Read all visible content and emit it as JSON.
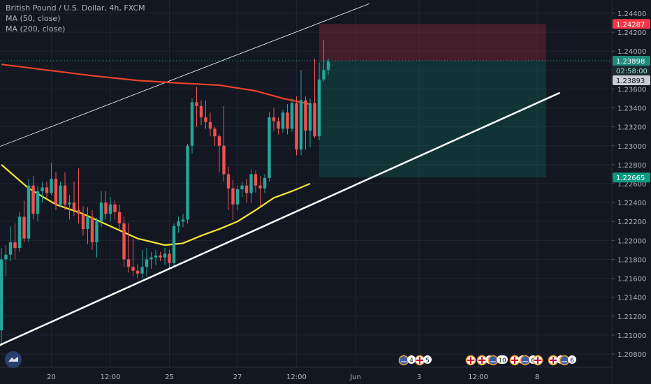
{
  "legend": {
    "title": "British Pound / U.S. Dollar, 4h, FXCM",
    "ma1": "MA (50, close)",
    "ma2": "MA (200, close)"
  },
  "colors": {
    "background": "#131722",
    "grid": "#1f2433",
    "up": "#26a69a",
    "down": "#ef5350",
    "ma50": "#f5e632",
    "ma200": "#e8432b",
    "trendline": "#ffffff",
    "axis_text": "#b2b5be"
  },
  "price_badges": {
    "stop": "1.24287",
    "last": "1.23898",
    "countdown": "02:58:00",
    "bid": "1.23893",
    "target": "1.22665"
  },
  "events": [
    {
      "icon": "us-flag-icon",
      "count": "4"
    },
    {
      "icon": "uk-flag-icon",
      "count": "5"
    },
    {
      "icon": "uk-flag-icon",
      "count": ""
    },
    {
      "icon": "uk-flag-icon",
      "count": "3"
    },
    {
      "icon": "us-flag-icon",
      "count": "10"
    },
    {
      "icon": "uk-flag-icon",
      "count": "3"
    },
    {
      "icon": "us-flag-icon",
      "count": "6"
    },
    {
      "icon": "uk-flag-icon",
      "count": ""
    },
    {
      "icon": "uk-flag-icon",
      "count": "2"
    },
    {
      "icon": "us-flag-icon",
      "count": "6"
    }
  ],
  "chart_data": {
    "type": "candlestick",
    "title": "British Pound / U.S. Dollar, 4h, FXCM",
    "ylim": [
      1.2066,
      1.2454
    ],
    "y_ticks": [
      "1.24400",
      "1.24200",
      "1.24000",
      "1.23800",
      "1.23600",
      "1.23400",
      "1.23200",
      "1.23000",
      "1.22800",
      "1.22600",
      "1.22400",
      "1.22200",
      "1.22000",
      "1.21800",
      "1.21600",
      "1.21400",
      "1.21200",
      "1.21000",
      "1.20800"
    ],
    "x_tick_labels": [
      {
        "label": "20",
        "bar": 11
      },
      {
        "label": "12:00",
        "bar": 24
      },
      {
        "label": "25",
        "bar": 37
      },
      {
        "label": "27",
        "bar": 52
      },
      {
        "label": "12:00",
        "bar": 65
      },
      {
        "label": "Jun",
        "bar": 78
      },
      {
        "label": "3",
        "bar": 92
      },
      {
        "label": "12:00",
        "bar": 105
      },
      {
        "label": "8",
        "bar": 118
      }
    ],
    "candles": [
      [
        1.2105,
        1.2192,
        1.2088,
        1.218
      ],
      [
        1.218,
        1.2195,
        1.2162,
        1.2185
      ],
      [
        1.2185,
        1.2215,
        1.2178,
        1.2198
      ],
      [
        1.2198,
        1.2218,
        1.218,
        1.2192
      ],
      [
        1.2192,
        1.223,
        1.2188,
        1.2225
      ],
      [
        1.2225,
        1.2242,
        1.2198,
        1.2202
      ],
      [
        1.2202,
        1.2265,
        1.2198,
        1.2258
      ],
      [
        1.2258,
        1.2268,
        1.2222,
        1.2228
      ],
      [
        1.2228,
        1.2258,
        1.222,
        1.2252
      ],
      [
        1.2252,
        1.2262,
        1.224,
        1.2256
      ],
      [
        1.2256,
        1.2262,
        1.2245,
        1.225
      ],
      [
        1.225,
        1.2282,
        1.2248,
        1.2265
      ],
      [
        1.2265,
        1.2272,
        1.2232,
        1.2238
      ],
      [
        1.2238,
        1.2262,
        1.2236,
        1.2258
      ],
      [
        1.2258,
        1.2272,
        1.2232,
        1.2238
      ],
      [
        1.2238,
        1.2248,
        1.2222,
        1.224
      ],
      [
        1.224,
        1.2262,
        1.2226,
        1.2232
      ],
      [
        1.2232,
        1.2276,
        1.2218,
        1.2228
      ],
      [
        1.2228,
        1.2236,
        1.2205,
        1.2212
      ],
      [
        1.2212,
        1.2235,
        1.2196,
        1.2225
      ],
      [
        1.2225,
        1.2232,
        1.219,
        1.2198
      ],
      [
        1.2198,
        1.2224,
        1.2182,
        1.222
      ],
      [
        1.222,
        1.2252,
        1.2214,
        1.224
      ],
      [
        1.224,
        1.2252,
        1.2222,
        1.2228
      ],
      [
        1.2228,
        1.2246,
        1.222,
        1.2238
      ],
      [
        1.2238,
        1.2242,
        1.2222,
        1.223
      ],
      [
        1.223,
        1.2238,
        1.2212,
        1.2218
      ],
      [
        1.2218,
        1.2225,
        1.2172,
        1.218
      ],
      [
        1.218,
        1.2218,
        1.2166,
        1.2172
      ],
      [
        1.2172,
        1.2202,
        1.2162,
        1.2168
      ],
      [
        1.2168,
        1.2175,
        1.216,
        1.2165
      ],
      [
        1.2165,
        1.219,
        1.216,
        1.2172
      ],
      [
        1.2172,
        1.2192,
        1.2162,
        1.218
      ],
      [
        1.218,
        1.2188,
        1.217,
        1.2182
      ],
      [
        1.2182,
        1.219,
        1.2174,
        1.2184
      ],
      [
        1.2184,
        1.2188,
        1.2178,
        1.2182
      ],
      [
        1.2182,
        1.2192,
        1.2174,
        1.2186
      ],
      [
        1.2186,
        1.219,
        1.217,
        1.2176
      ],
      [
        1.2176,
        1.2218,
        1.2172,
        1.2215
      ],
      [
        1.2215,
        1.2225,
        1.2208,
        1.222
      ],
      [
        1.222,
        1.2228,
        1.2214,
        1.2222
      ],
      [
        1.2222,
        1.2302,
        1.2218,
        1.23
      ],
      [
        1.23,
        1.235,
        1.2292,
        1.2346
      ],
      [
        1.2346,
        1.2362,
        1.232,
        1.2342
      ],
      [
        1.2342,
        1.2348,
        1.2322,
        1.233
      ],
      [
        1.233,
        1.2348,
        1.2318,
        1.2325
      ],
      [
        1.2325,
        1.2335,
        1.231,
        1.2318
      ],
      [
        1.2318,
        1.232,
        1.23,
        1.231
      ],
      [
        1.231,
        1.2312,
        1.2272,
        1.23
      ],
      [
        1.23,
        1.2342,
        1.2262,
        1.227
      ],
      [
        1.227,
        1.2278,
        1.2232,
        1.2255
      ],
      [
        1.2255,
        1.2264,
        1.2222,
        1.2238
      ],
      [
        1.2238,
        1.2258,
        1.2232,
        1.2254
      ],
      [
        1.2254,
        1.2262,
        1.2246,
        1.2258
      ],
      [
        1.2258,
        1.2265,
        1.224,
        1.225
      ],
      [
        1.225,
        1.2275,
        1.224,
        1.227
      ],
      [
        1.227,
        1.2274,
        1.225,
        1.2258
      ],
      [
        1.2258,
        1.2268,
        1.2236,
        1.2255
      ],
      [
        1.2255,
        1.227,
        1.225,
        1.2266
      ],
      [
        1.2266,
        1.2336,
        1.2262,
        1.233
      ],
      [
        1.233,
        1.234,
        1.2316,
        1.2326
      ],
      [
        1.2326,
        1.233,
        1.2312,
        1.2318
      ],
      [
        1.2318,
        1.2338,
        1.2314,
        1.2335
      ],
      [
        1.2335,
        1.2344,
        1.2312,
        1.2318
      ],
      [
        1.2318,
        1.235,
        1.2315,
        1.2345
      ],
      [
        1.2345,
        1.2352,
        1.229,
        1.2296
      ],
      [
        1.2296,
        1.238,
        1.229,
        1.2348
      ],
      [
        1.2348,
        1.2352,
        1.2296,
        1.2316
      ],
      [
        1.2316,
        1.235,
        1.2298,
        1.2345
      ],
      [
        1.2345,
        1.2392,
        1.2308,
        1.231
      ],
      [
        1.231,
        1.2388,
        1.2306,
        1.237
      ],
      [
        1.237,
        1.2412,
        1.2368,
        1.238
      ],
      [
        1.238,
        1.2392,
        1.2375,
        1.2389
      ]
    ],
    "series": [
      {
        "name": "MA (50, close)",
        "values": [
          [
            0,
            1.228
          ],
          [
            6,
            1.2255
          ],
          [
            12,
            1.2238
          ],
          [
            18,
            1.2228
          ],
          [
            24,
            1.2215
          ],
          [
            30,
            1.2202
          ],
          [
            36,
            1.2195
          ],
          [
            40,
            1.2197
          ],
          [
            44,
            1.2205
          ],
          [
            48,
            1.2212
          ],
          [
            52,
            1.222
          ],
          [
            56,
            1.2232
          ],
          [
            60,
            1.2245
          ],
          [
            64,
            1.2252
          ],
          [
            68,
            1.226
          ]
        ]
      },
      {
        "name": "MA (200, close)",
        "values": [
          [
            0,
            1.2386
          ],
          [
            10,
            1.238
          ],
          [
            20,
            1.2374
          ],
          [
            30,
            1.2369
          ],
          [
            40,
            1.2366
          ],
          [
            48,
            1.2364
          ],
          [
            56,
            1.2358
          ],
          [
            62,
            1.235
          ],
          [
            68,
            1.2344
          ]
        ]
      }
    ],
    "trendlines": [
      {
        "name": "support-trendline",
        "from": [
          -1,
          1.2088
        ],
        "to": [
          123,
          1.2356
        ],
        "width": 2.5
      },
      {
        "name": "channel-upper-line",
        "from": [
          -1,
          1.2298
        ],
        "to": [
          81,
          1.245
        ],
        "width": 0.8
      }
    ],
    "position": {
      "entry": 1.23898,
      "stop": 1.24287,
      "target": 1.22665,
      "from_bar": 70,
      "to_bar": 120
    }
  }
}
